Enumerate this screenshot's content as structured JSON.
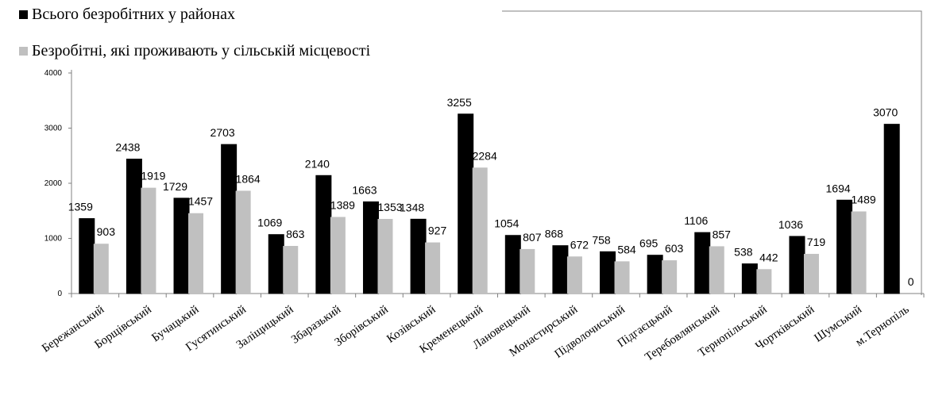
{
  "chart_data": {
    "type": "bar",
    "categories": [
      "Бережанський",
      "Борщівський",
      "Бучацький",
      "Гусятинський",
      "Заліщицький",
      "Збаразький",
      "Зборівський",
      "Козівський",
      "Кременецький",
      "Лановецький",
      "Монастирський",
      "Підволочиський",
      "Підгаєцький",
      "Теребовлянський",
      "Тернопільський",
      "Чортківський",
      "Шумський",
      "м.Тернопіль"
    ],
    "series": [
      {
        "name": "Всього безробітних у районах",
        "color": "#000000",
        "values": [
          1359,
          2438,
          1729,
          2703,
          1069,
          2140,
          1663,
          1348,
          3255,
          1054,
          868,
          758,
          695,
          1106,
          538,
          1036,
          1694,
          3070
        ]
      },
      {
        "name": "Безробітні, які проживають у сільській місцевості",
        "color": "#c0c0c0",
        "values": [
          903,
          1919,
          1457,
          1864,
          863,
          1389,
          1353,
          927,
          2284,
          807,
          672,
          584,
          603,
          857,
          442,
          719,
          1489,
          0
        ]
      }
    ],
    "ylim": [
      0,
      4000
    ],
    "yticks": [
      0,
      1000,
      2000,
      3000,
      4000
    ],
    "legend": "top-left"
  }
}
